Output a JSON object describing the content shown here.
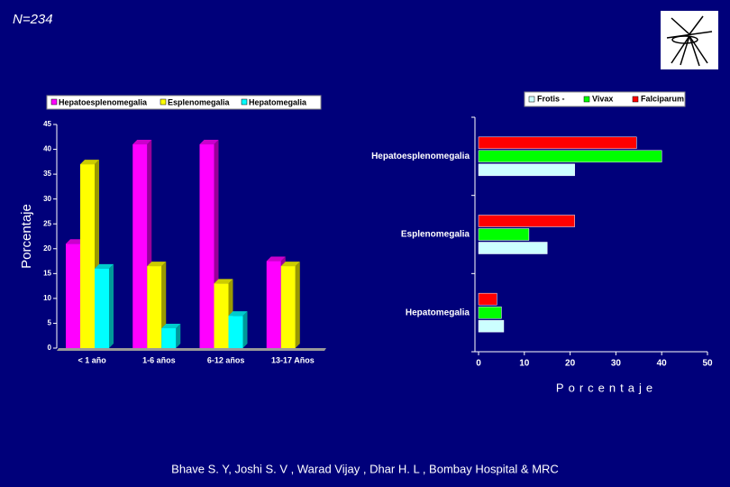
{
  "header": {
    "note": "N=234"
  },
  "footer": {
    "credit": "Bhave S. Y, Joshi S. V ,  Warad Vijay ,  Dhar H. L , Bombay Hospital & MRC"
  },
  "chart_data": [
    {
      "type": "bar",
      "ylabel": "Porcentaje",
      "categories": [
        "< 1 año",
        "1-6 años",
        "6-12 años",
        "13-17 Años"
      ],
      "series": [
        {
          "name": "Hepatoesplenomegalia",
          "color": "#ff00ff",
          "values": [
            21,
            41,
            41,
            17.5
          ]
        },
        {
          "name": "Esplenomegalia",
          "color": "#ffff00",
          "values": [
            37,
            16.5,
            13,
            16.5
          ]
        },
        {
          "name": "Hepatomegalia",
          "color": "#00ffff",
          "values": [
            16,
            4,
            6.5,
            null
          ]
        }
      ],
      "ylim": [
        0,
        45
      ],
      "yticks": [
        0,
        5,
        10,
        15,
        20,
        25,
        30,
        35,
        40,
        45
      ]
    },
    {
      "type": "hbar",
      "xlabel": "Porcentaje",
      "categories": [
        "Hepatoesplenomegalia",
        "Esplenomegalia",
        "Hepatomegalia"
      ],
      "series": [
        {
          "name": "Frotis -",
          "color": "#ccffff",
          "values": [
            21,
            15,
            5.5
          ]
        },
        {
          "name": "Vivax",
          "color": "#00ff00",
          "values": [
            40,
            11,
            5
          ]
        },
        {
          "name": "Falciparum",
          "color": "#ff0000",
          "values": [
            34.5,
            21,
            4
          ]
        }
      ],
      "xlim": [
        0,
        50
      ],
      "xticks": [
        0,
        10,
        20,
        30,
        40,
        50
      ]
    }
  ]
}
